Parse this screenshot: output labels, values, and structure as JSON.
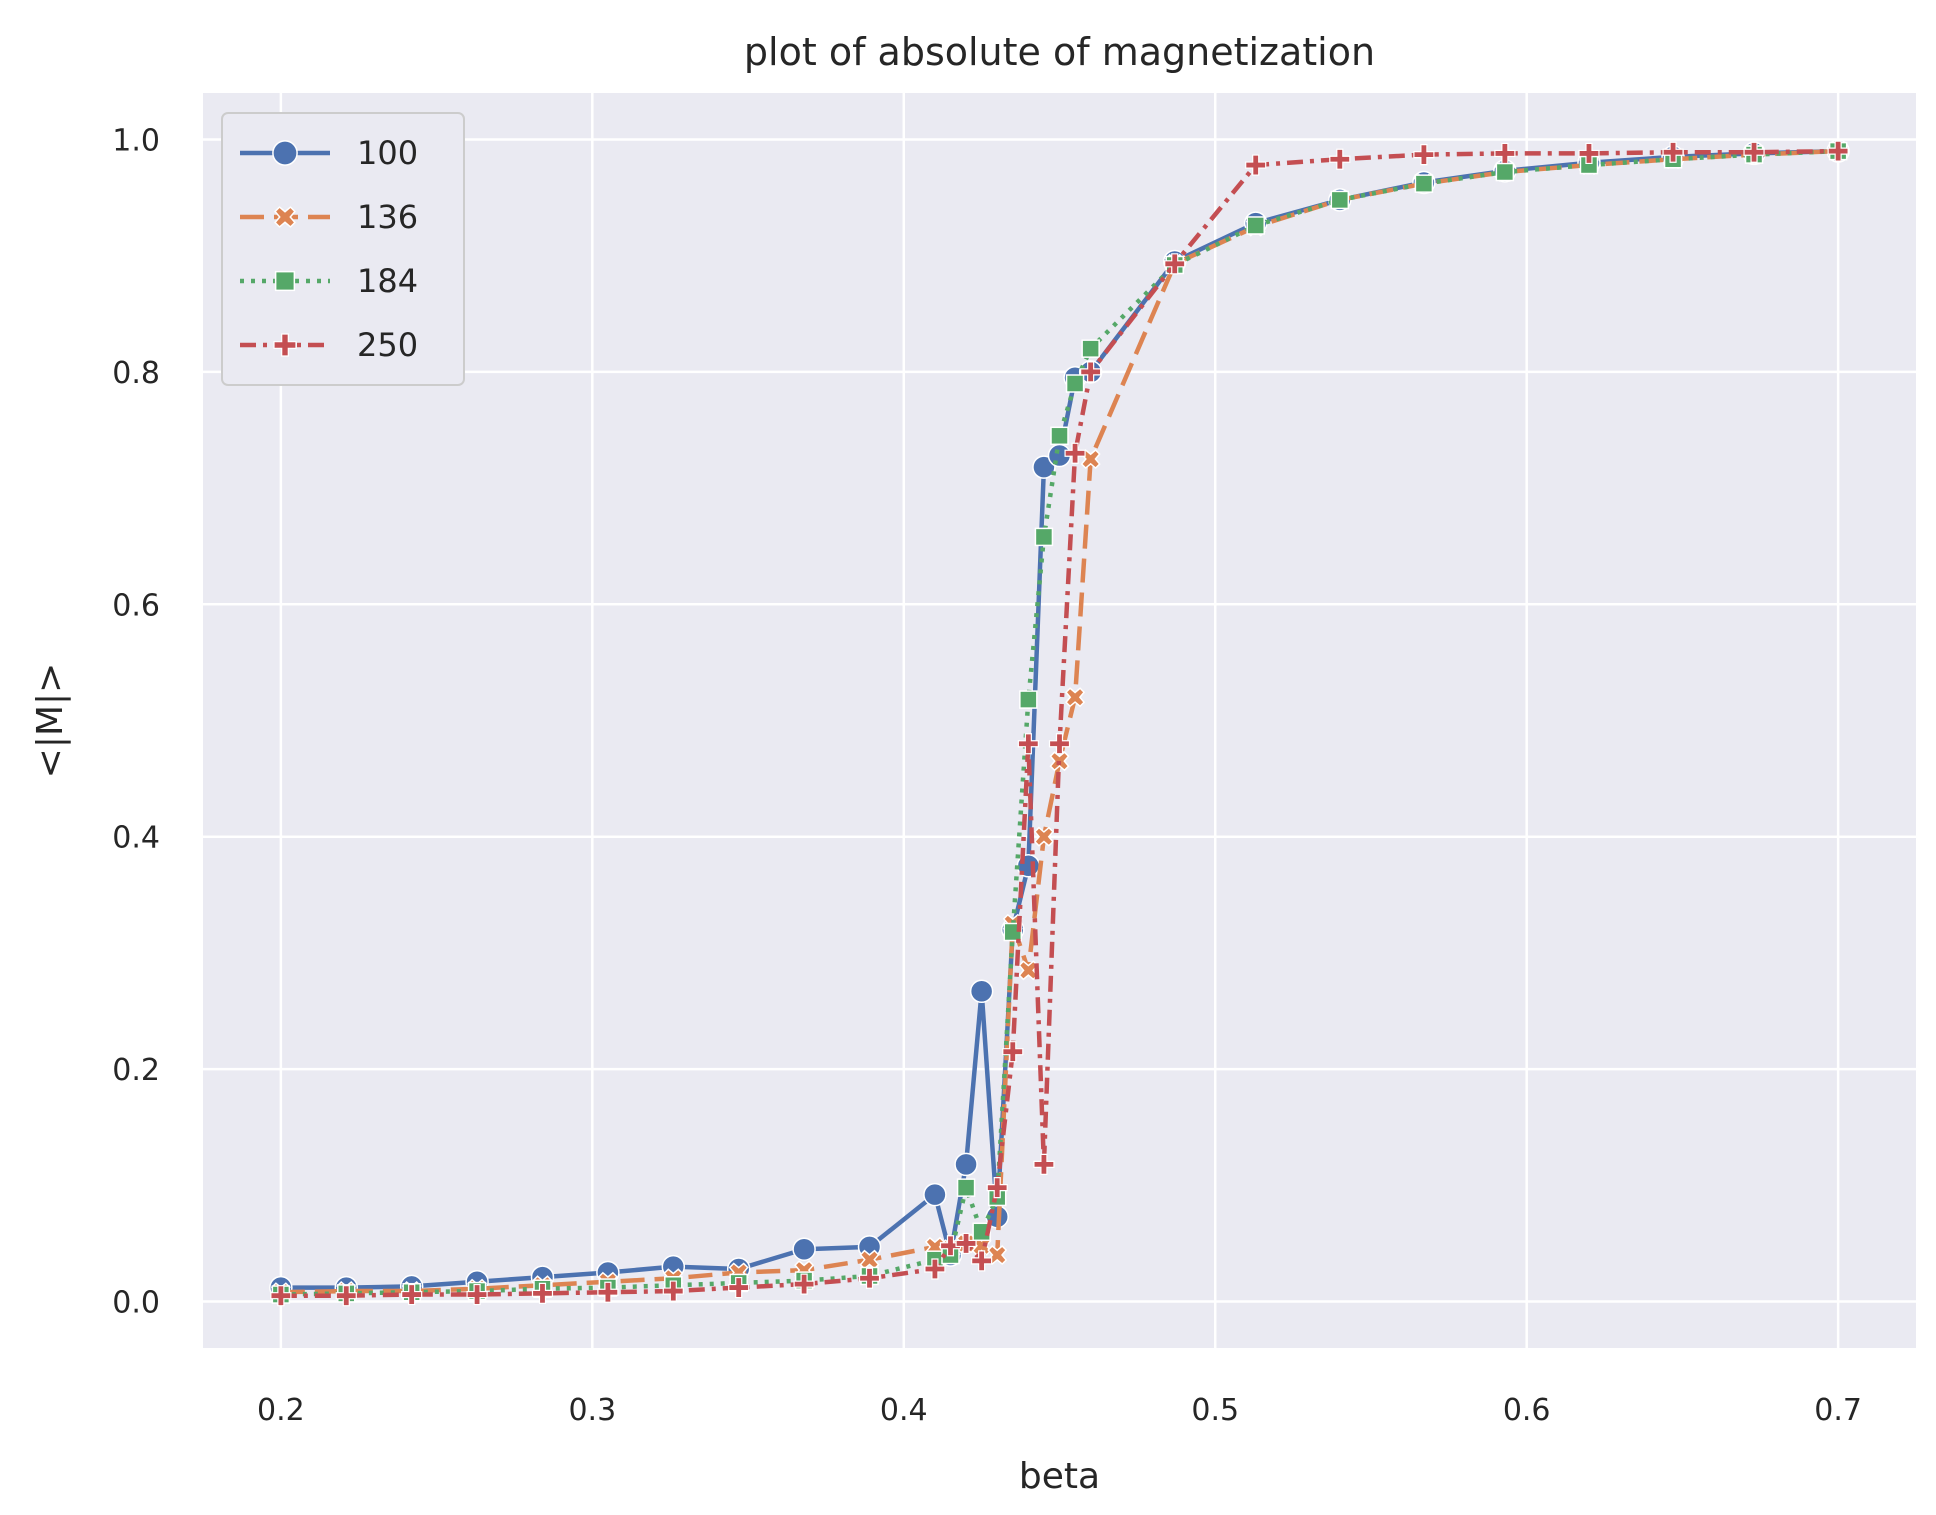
{
  "chart_data": {
    "type": "line",
    "title": "plot of absolute of magnetization",
    "xlabel": "beta",
    "ylabel": "<|M|>",
    "xlim": [
      0.175,
      0.725
    ],
    "ylim": [
      -0.04,
      1.04
    ],
    "xticks": [
      0.2,
      0.3,
      0.4,
      0.5,
      0.6,
      0.7
    ],
    "yticks": [
      0.0,
      0.2,
      0.4,
      0.6,
      0.8,
      1.0
    ],
    "grid": true,
    "legend": "top-left",
    "background": "#eaeaf2",
    "grid_color": "#ffffff",
    "series": [
      {
        "name": "100",
        "color": "#4c72b0",
        "marker": "circle",
        "dash": "solid",
        "x": [
          0.2,
          0.221,
          0.242,
          0.263,
          0.284,
          0.305,
          0.326,
          0.347,
          0.368,
          0.389,
          0.41,
          0.415,
          0.42,
          0.425,
          0.43,
          0.435,
          0.44,
          0.445,
          0.45,
          0.455,
          0.46,
          0.487,
          0.513,
          0.54,
          0.567,
          0.593,
          0.62,
          0.647,
          0.673,
          0.7
        ],
        "y": [
          0.012,
          0.012,
          0.013,
          0.017,
          0.021,
          0.025,
          0.03,
          0.028,
          0.045,
          0.047,
          0.092,
          0.04,
          0.118,
          0.267,
          0.073,
          0.32,
          0.375,
          0.718,
          0.728,
          0.795,
          0.8,
          0.895,
          0.928,
          0.948,
          0.963,
          0.973,
          0.98,
          0.985,
          0.988,
          0.99
        ]
      },
      {
        "name": "136",
        "color": "#dd8452",
        "marker": "x",
        "dash": "dashed",
        "x": [
          0.2,
          0.221,
          0.242,
          0.263,
          0.284,
          0.305,
          0.326,
          0.347,
          0.368,
          0.389,
          0.41,
          0.415,
          0.42,
          0.425,
          0.43,
          0.435,
          0.44,
          0.445,
          0.45,
          0.455,
          0.46,
          0.487,
          0.513,
          0.54,
          0.567,
          0.593,
          0.62,
          0.647,
          0.673,
          0.7
        ],
        "y": [
          0.008,
          0.009,
          0.009,
          0.011,
          0.014,
          0.017,
          0.02,
          0.025,
          0.027,
          0.036,
          0.047,
          0.045,
          0.05,
          0.048,
          0.04,
          0.325,
          0.285,
          0.4,
          0.465,
          0.52,
          0.725,
          0.893,
          0.925,
          0.948,
          0.962,
          0.972,
          0.978,
          0.983,
          0.987,
          0.99
        ]
      },
      {
        "name": "184",
        "color": "#55a868",
        "marker": "square",
        "dash": "dotted",
        "x": [
          0.2,
          0.221,
          0.242,
          0.263,
          0.284,
          0.305,
          0.326,
          0.347,
          0.368,
          0.389,
          0.41,
          0.415,
          0.42,
          0.425,
          0.43,
          0.435,
          0.44,
          0.445,
          0.45,
          0.455,
          0.46,
          0.487,
          0.513,
          0.54,
          0.567,
          0.593,
          0.62,
          0.647,
          0.673,
          0.7
        ],
        "y": [
          0.006,
          0.007,
          0.008,
          0.009,
          0.011,
          0.012,
          0.014,
          0.016,
          0.018,
          0.022,
          0.036,
          0.04,
          0.098,
          0.06,
          0.09,
          0.318,
          0.518,
          0.658,
          0.745,
          0.79,
          0.82,
          0.892,
          0.926,
          0.948,
          0.962,
          0.972,
          0.978,
          0.983,
          0.987,
          0.99
        ]
      },
      {
        "name": "250",
        "color": "#c44e52",
        "marker": "plus",
        "dash": "dashdot",
        "x": [
          0.2,
          0.221,
          0.242,
          0.263,
          0.284,
          0.305,
          0.326,
          0.347,
          0.368,
          0.389,
          0.41,
          0.415,
          0.42,
          0.425,
          0.43,
          0.435,
          0.44,
          0.445,
          0.45,
          0.455,
          0.46,
          0.487,
          0.513,
          0.54,
          0.567,
          0.593,
          0.62,
          0.647,
          0.673,
          0.7
        ],
        "y": [
          0.005,
          0.005,
          0.006,
          0.006,
          0.007,
          0.008,
          0.009,
          0.012,
          0.015,
          0.02,
          0.028,
          0.048,
          0.05,
          0.035,
          0.098,
          0.215,
          0.48,
          0.118,
          0.48,
          0.73,
          0.8,
          0.893,
          0.978,
          0.983,
          0.987,
          0.988,
          0.988,
          0.989,
          0.989,
          0.99
        ]
      }
    ]
  }
}
